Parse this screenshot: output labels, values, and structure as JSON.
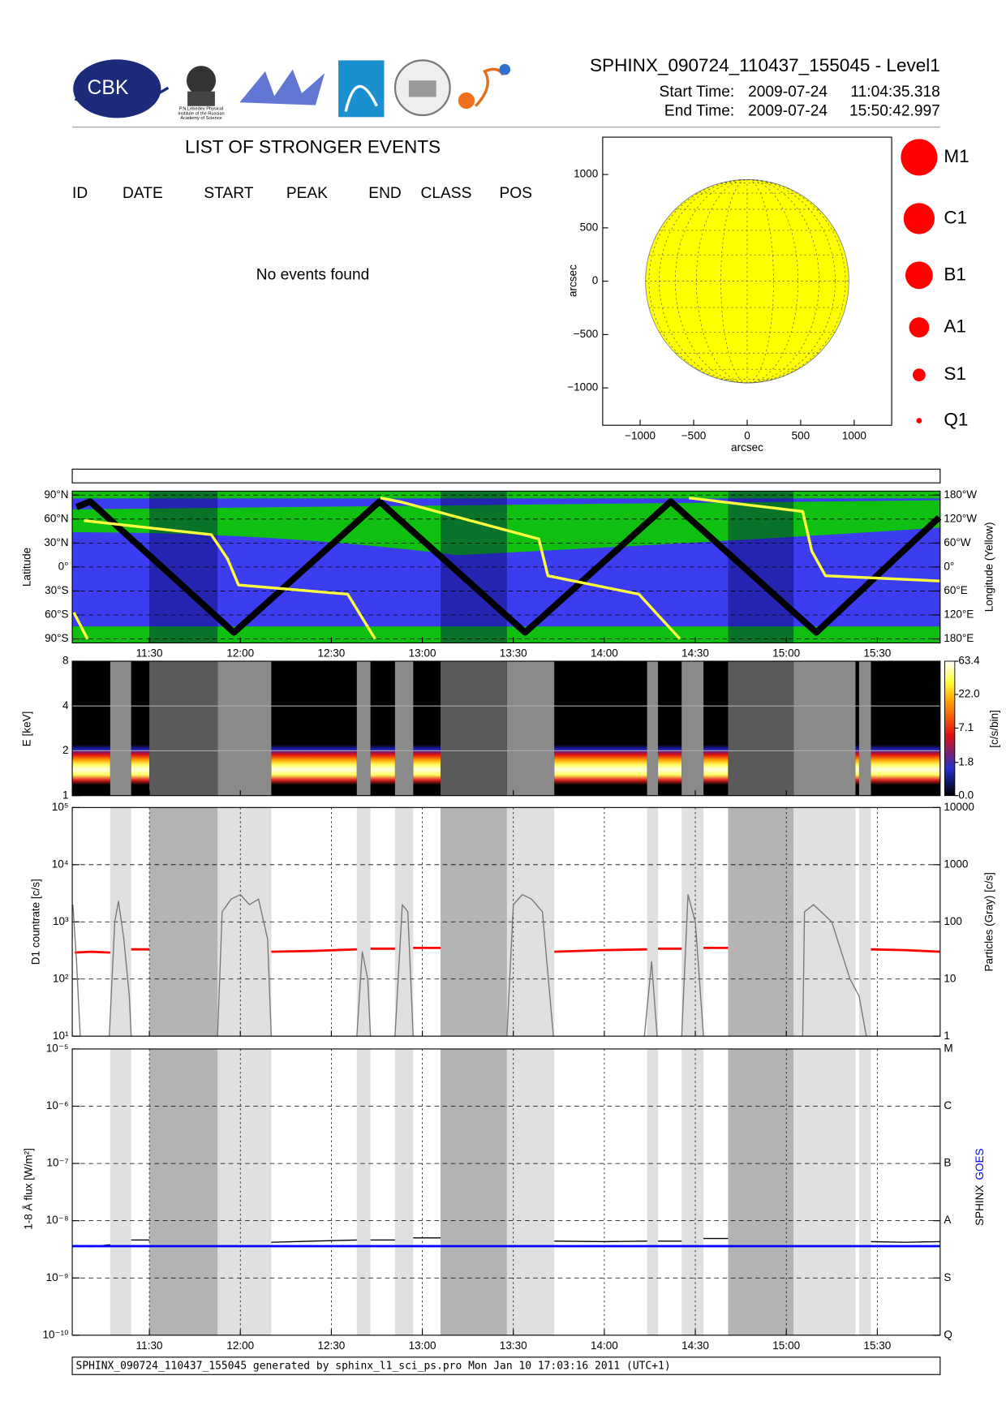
{
  "header": {
    "title": "SPHINX_090724_110437_155045 - Level1",
    "start_label": "Start Time:",
    "start_date": "2009-07-24",
    "start_time": "11:04:35.318",
    "end_label": "End Time:",
    "end_date": "2009-07-24",
    "end_time": "15:50:42.997",
    "logo_text": "CBK",
    "logo_caption": [
      "P.N.Lebedev Physical",
      "Institute of the Russian",
      "Academy of Science"
    ]
  },
  "events": {
    "title": "LIST OF STRONGER EVENTS",
    "columns": [
      "ID",
      "DATE",
      "START",
      "PEAK",
      "END",
      "CLASS",
      "POS"
    ],
    "message": "No events found"
  },
  "sun_map": {
    "xlabel": "arcsec",
    "ylabel": "arcsec",
    "xlim": [
      -1350,
      1350
    ],
    "ylim": [
      -1350,
      1350
    ],
    "xticks": [
      {
        "value": -1000,
        "label": "−1000"
      },
      {
        "value": -500,
        "label": "−500"
      },
      0,
      500,
      1000
    ],
    "yticks": [
      1000,
      500,
      0,
      {
        "value": -500,
        "label": "−500"
      },
      {
        "value": -1000,
        "label": "−1000"
      }
    ],
    "sun_radius": 950,
    "sun_color": "#ffff00"
  },
  "classes": {
    "labels": [
      "M1",
      "C1",
      "B1",
      "A1",
      "S1",
      "Q1"
    ],
    "color": "#ff0000"
  },
  "time_axis": {
    "xlim": [
      11.0764,
      15.8453
    ],
    "xticks": [
      {
        "value": 11.5,
        "label": "11:30"
      },
      {
        "value": 12,
        "label": "12:00"
      },
      {
        "value": 12.5,
        "label": "12:30"
      },
      {
        "value": 13,
        "label": "13:00"
      },
      {
        "value": 13.5,
        "label": "13:30"
      },
      {
        "value": 14,
        "label": "14:00"
      },
      {
        "value": 14.5,
        "label": "14:30"
      },
      {
        "value": 15,
        "label": "15:00"
      },
      {
        "value": 15.5,
        "label": "15:30"
      }
    ]
  },
  "gaps": {
    "light": [
      [
        11.285,
        11.4
      ],
      [
        11.875,
        12.17
      ],
      [
        12.64,
        12.715
      ],
      [
        12.85,
        12.95
      ],
      [
        13.465,
        13.725
      ],
      [
        14.235,
        14.295
      ],
      [
        14.425,
        14.545
      ],
      [
        15.04,
        15.38
      ],
      [
        15.4,
        15.465
      ]
    ],
    "dark": [
      [
        11.5,
        11.875
      ],
      [
        13.1,
        13.465
      ],
      [
        14.68,
        15.04
      ]
    ]
  },
  "orbit": {
    "ylabel": "Latitude",
    "y2label": "Longitude (Yellow)",
    "ylim": [
      -95,
      95
    ],
    "yticks": [
      {
        "value": 90,
        "label": "90°N"
      },
      {
        "value": 60,
        "label": "60°N"
      },
      {
        "value": 30,
        "label": "30°N"
      },
      {
        "value": 0,
        "label": "0°"
      },
      {
        "value": -30,
        "label": "30°S"
      },
      {
        "value": -60,
        "label": "60°S"
      },
      {
        "value": -90,
        "label": "90°S"
      }
    ],
    "y2lim": [
      -190,
      190
    ],
    "y2ticks": [
      {
        "value": 180,
        "label": "180°W"
      },
      {
        "value": 120,
        "label": "120°W"
      },
      {
        "value": 60,
        "label": "60°W"
      },
      {
        "value": 0,
        "label": "0°"
      },
      {
        "value": -60,
        "label": "60°E"
      },
      {
        "value": -120,
        "label": "120°E"
      },
      {
        "value": -180,
        "label": "180°E"
      }
    ],
    "track": {
      "color": "#000000",
      "x": [
        11.1,
        11.175,
        11.965,
        12.765,
        13.565,
        14.365,
        15.165,
        15.84
      ],
      "values": [
        75,
        82,
        -82,
        82,
        -82,
        82,
        -82,
        62
      ]
    },
    "longitude": {
      "color": "#ffff40",
      "x": [
        11.085,
        11.16,
        null,
        11.14,
        11.84,
        11.93,
        11.99,
        12.59,
        12.74,
        null,
        12.77,
        12.89,
        13.64,
        13.69,
        14.19,
        14.415,
        null,
        14.465,
        15.09,
        15.14,
        15.215,
        15.845
      ],
      "values": [
        -114,
        -180,
        null,
        116,
        81,
        20,
        -45,
        -68,
        -180,
        null,
        173,
        162,
        70,
        -22,
        -68,
        -180,
        null,
        173,
        139,
        40,
        -22,
        -35
      ]
    }
  },
  "spectrogram": {
    "ylabel": "E [keV]",
    "ylim": [
      1,
      8
    ],
    "yticks": [
      1,
      2,
      4,
      8
    ],
    "log": true,
    "colorbar": {
      "label": "[c/s/bin]",
      "lim": [
        0,
        63.4
      ],
      "scale": "log1p",
      "ticks": [
        63.4,
        {
          "value": 22,
          "label": "22.0"
        },
        7.1,
        1.8,
        {
          "value": 0,
          "label": "0.0"
        }
      ]
    }
  },
  "countrate": {
    "ylabel": "D1 countrate [c/s]",
    "y2label": "Particles (Gray) [c/s]",
    "log": true,
    "ylim": [
      10,
      100000
    ],
    "yticks": [
      {
        "value": 10,
        "label": "10¹"
      },
      {
        "value": 100,
        "label": "10²"
      },
      {
        "value": 1000,
        "label": "10³"
      },
      {
        "value": 10000,
        "label": "10⁴"
      },
      {
        "value": 100000,
        "label": "10⁵"
      }
    ],
    "y2lim": [
      1,
      10000
    ],
    "y2ticks": [
      1,
      10,
      100,
      1000,
      10000
    ],
    "series": [
      {
        "color": "#ff0000",
        "x": [
          11.09,
          11.18,
          11.285,
          null,
          11.4,
          11.5,
          null,
          12.17,
          12.4,
          12.64,
          null,
          12.715,
          12.85,
          null,
          12.95,
          13.1,
          null,
          13.725,
          14.0,
          14.235,
          null,
          14.295,
          14.425,
          null,
          14.545,
          14.68,
          null,
          15.465,
          15.65,
          15.845
        ],
        "values": [
          290,
          300,
          290,
          null,
          330,
          330,
          null,
          300,
          310,
          330,
          null,
          340,
          340,
          null,
          350,
          350,
          null,
          300,
          320,
          330,
          null,
          340,
          340,
          null,
          350,
          350,
          null,
          330,
          320,
          300
        ]
      },
      {
        "color": "#777777",
        "axis": "y2",
        "x": [
          11.08,
          11.1,
          11.12,
          null,
          11.28,
          11.31,
          11.33,
          11.36,
          11.39,
          11.4,
          null,
          11.875,
          11.9,
          11.95,
          12.0,
          12.05,
          12.1,
          12.15,
          12.17,
          null,
          12.64,
          12.67,
          12.7,
          12.715,
          null,
          12.85,
          12.89,
          12.92,
          12.95,
          null,
          13.465,
          13.5,
          13.55,
          13.6,
          13.66,
          13.72,
          null,
          14.22,
          14.26,
          14.29,
          null,
          14.425,
          14.46,
          14.5,
          14.545,
          null,
          15.09,
          15.1,
          15.15,
          15.25,
          15.35,
          15.4,
          15.44
        ],
        "values": [
          200,
          20,
          1,
          null,
          1,
          100,
          230,
          50,
          5,
          1,
          null,
          1,
          150,
          250,
          300,
          200,
          250,
          50,
          1,
          null,
          1,
          30,
          10,
          1,
          null,
          1,
          200,
          150,
          1,
          null,
          1,
          200,
          300,
          250,
          150,
          1,
          null,
          1,
          20,
          1,
          null,
          1,
          300,
          100,
          1,
          null,
          1,
          150,
          200,
          100,
          10,
          5,
          1
        ]
      }
    ]
  },
  "flux": {
    "ylabel": "1-8 Å flux [W/m²]",
    "log": true,
    "ylim": [
      1e-10,
      1e-05
    ],
    "yticks": [
      {
        "value": 1e-10,
        "label": "10⁻¹⁰"
      },
      {
        "value": 1e-09,
        "label": "10⁻⁹"
      },
      {
        "value": 1e-08,
        "label": "10⁻⁸"
      },
      {
        "value": 1e-07,
        "label": "10⁻⁷"
      },
      {
        "value": 1e-06,
        "label": "10⁻⁶"
      },
      {
        "value": 1e-05,
        "label": "10⁻⁵"
      }
    ],
    "y2ticks": [
      {
        "value": 1e-05,
        "label": "M"
      },
      {
        "value": 1e-06,
        "label": "C"
      },
      {
        "value": 1e-07,
        "label": "B"
      },
      {
        "value": 1e-08,
        "label": "A"
      },
      {
        "value": 1e-09,
        "label": "S"
      },
      {
        "value": 1e-10,
        "label": "Q"
      }
    ],
    "series": [
      {
        "name": "SPHINX",
        "color": "#000000",
        "x": [
          11.09,
          11.18,
          11.285,
          null,
          11.4,
          11.5,
          null,
          12.17,
          12.4,
          12.64,
          null,
          12.715,
          12.85,
          null,
          12.95,
          13.1,
          null,
          13.725,
          14.0,
          14.235,
          null,
          14.295,
          14.425,
          null,
          14.545,
          14.68,
          null,
          15.465,
          15.65,
          15.845
        ],
        "values": [
          3.7e-09,
          3.5e-09,
          3.8e-09,
          null,
          4.6e-09,
          4.6e-09,
          null,
          4.2e-09,
          4.4e-09,
          4.6e-09,
          null,
          4.6e-09,
          4.6e-09,
          null,
          5e-09,
          5e-09,
          null,
          4.4e-09,
          4.3e-09,
          4.4e-09,
          null,
          4.4e-09,
          4.4e-09,
          null,
          4.9e-09,
          4.9e-09,
          null,
          4.3e-09,
          4.2e-09,
          4.3e-09
        ]
      },
      {
        "name": "GOES",
        "color": "#0000ff",
        "x": [
          11.0764,
          15.8453
        ],
        "values": [
          3.6e-09,
          3.6e-09
        ]
      }
    ]
  },
  "footer": "SPHINX_090724_110437_155045 generated by sphinx_l1_sci_ps.pro Mon Jan 10 17:03:16 2011 (UTC+1)"
}
